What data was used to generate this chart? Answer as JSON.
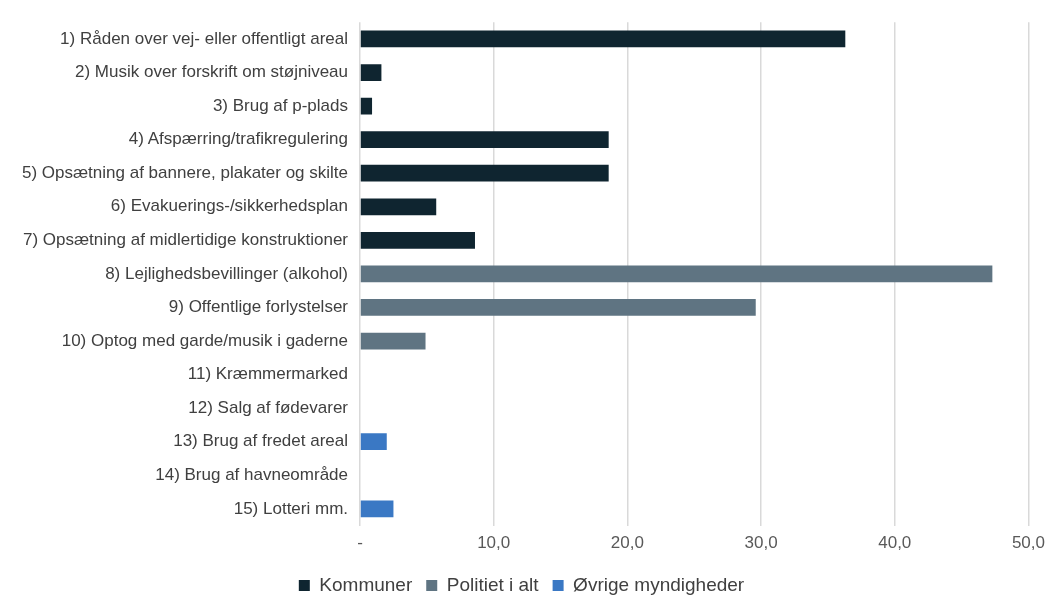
{
  "chart_data": {
    "type": "bar",
    "orientation": "horizontal",
    "stacked": true,
    "categories": [
      "1) Råden over vej- eller offentligt areal",
      "2) Musik over forskrift om støjniveau",
      "3) Brug af p-plads",
      "4) Afspærring/trafikregulering",
      "5) Opsætning af bannere, plakater og skilte",
      "6) Evakuerings-/sikkerhedsplan",
      "7) Opsætning af midlertidige konstruktioner",
      "8) Lejlighedsbevillinger (alkohol)",
      "9) Offentlige forlystelser",
      "10) Optog med garde/musik i gaderne",
      "11) Kræmmermarked",
      "12) Salg af fødevarer",
      "13) Brug af fredet areal",
      "14) Brug af havneområde",
      "15) Lotteri mm."
    ],
    "series": [
      {
        "name": "Kommuner",
        "color": "#0f2530",
        "values": [
          36.3,
          1.6,
          0.9,
          18.6,
          18.6,
          5.7,
          8.6,
          null,
          null,
          null,
          null,
          null,
          null,
          null,
          null
        ]
      },
      {
        "name": "Politiet i alt",
        "color": "#5f7482",
        "values": [
          null,
          null,
          null,
          null,
          null,
          null,
          null,
          47.3,
          29.6,
          4.9,
          null,
          null,
          null,
          null,
          null
        ]
      },
      {
        "name": "Øvrige myndigheder",
        "color": "#3a78c4",
        "values": [
          null,
          null,
          null,
          null,
          null,
          null,
          null,
          null,
          null,
          null,
          null,
          null,
          2.0,
          null,
          2.5
        ]
      }
    ],
    "xlim": [
      0,
      50
    ],
    "xticks": [
      {
        "value": 0,
        "label": "-"
      },
      {
        "value": 10,
        "label": "10,0"
      },
      {
        "value": 20,
        "label": "20,0"
      },
      {
        "value": 30,
        "label": "30,0"
      },
      {
        "value": 40,
        "label": "40,0"
      },
      {
        "value": 50,
        "label": "50,0"
      }
    ],
    "grid": "x",
    "legend": "bottom"
  }
}
